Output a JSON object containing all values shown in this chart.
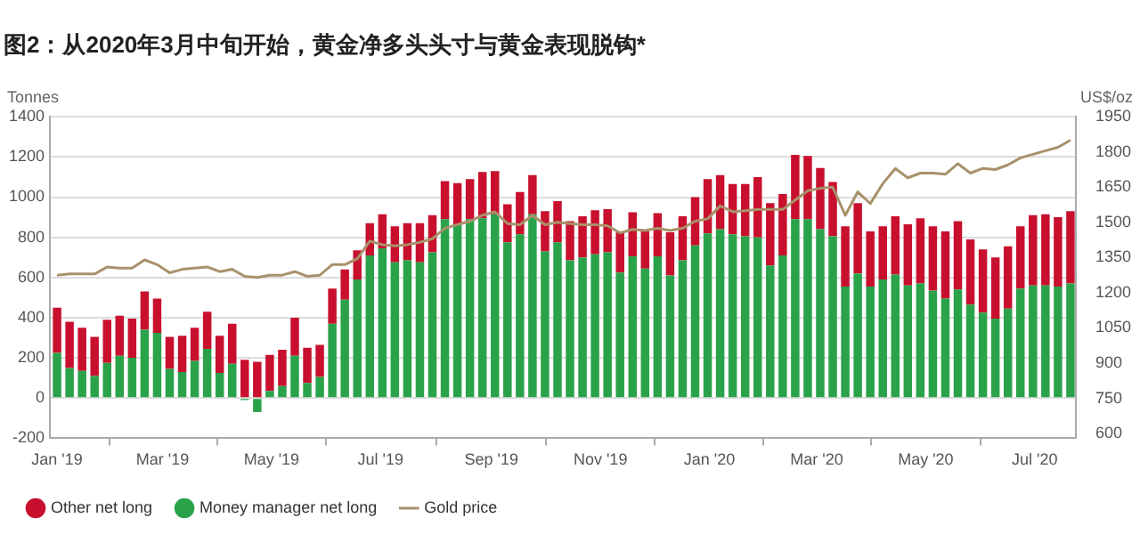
{
  "chart_data": {
    "type": "bar",
    "title": "图2：从2020年3月中旬开始，黄金净多头头寸与黄金表现脱钩*",
    "ylabel": "Tonnes",
    "y2label": "US$/oz",
    "x": [
      "2019-01-01",
      "2019-01-08",
      "2019-01-15",
      "2019-01-22",
      "2019-01-29",
      "2019-02-05",
      "2019-02-12",
      "2019-02-19",
      "2019-02-26",
      "2019-03-05",
      "2019-03-12",
      "2019-03-19",
      "2019-03-26",
      "2019-04-02",
      "2019-04-09",
      "2019-04-16",
      "2019-04-23",
      "2019-04-30",
      "2019-05-07",
      "2019-05-14",
      "2019-05-21",
      "2019-05-28",
      "2019-06-04",
      "2019-06-11",
      "2019-06-18",
      "2019-06-25",
      "2019-07-02",
      "2019-07-09",
      "2019-07-16",
      "2019-07-23",
      "2019-07-30",
      "2019-08-06",
      "2019-08-13",
      "2019-08-20",
      "2019-08-27",
      "2019-09-03",
      "2019-09-10",
      "2019-09-17",
      "2019-09-24",
      "2019-10-01",
      "2019-10-08",
      "2019-10-15",
      "2019-10-22",
      "2019-10-29",
      "2019-11-05",
      "2019-11-12",
      "2019-11-19",
      "2019-11-26",
      "2019-12-03",
      "2019-12-10",
      "2019-12-17",
      "2019-12-24",
      "2019-12-31",
      "2020-01-07",
      "2020-01-14",
      "2020-01-21",
      "2020-01-28",
      "2020-02-04",
      "2020-02-11",
      "2020-02-18",
      "2020-02-25",
      "2020-03-03",
      "2020-03-10",
      "2020-03-17",
      "2020-03-24",
      "2020-03-31",
      "2020-04-07",
      "2020-04-14",
      "2020-04-21",
      "2020-04-28",
      "2020-05-05",
      "2020-05-12",
      "2020-05-19",
      "2020-05-26",
      "2020-06-02",
      "2020-06-09",
      "2020-06-16",
      "2020-06-23",
      "2020-06-30",
      "2020-07-07",
      "2020-07-14",
      "2020-07-21"
    ],
    "series": [
      {
        "name": "Money manager net long",
        "color": "#2aa24a",
        "values": [
          225,
          150,
          135,
          110,
          175,
          210,
          200,
          340,
          325,
          145,
          130,
          185,
          245,
          125,
          170,
          -10,
          -70,
          35,
          60,
          210,
          75,
          105,
          370,
          490,
          590,
          710,
          745,
          675,
          685,
          675,
          725,
          890,
          865,
          890,
          895,
          915,
          775,
          815,
          915,
          730,
          775,
          685,
          700,
          715,
          725,
          625,
          705,
          645,
          705,
          610,
          685,
          760,
          820,
          840,
          815,
          805,
          800,
          660,
          710,
          890,
          890,
          840,
          805,
          555,
          620,
          555,
          590,
          615,
          560,
          570,
          535,
          495,
          540,
          465,
          425,
          395,
          445,
          545,
          560,
          560,
          555,
          570
        ]
      },
      {
        "name": "Other net long",
        "color": "#c8102e",
        "values": [
          225,
          230,
          215,
          195,
          215,
          200,
          195,
          190,
          170,
          160,
          180,
          165,
          185,
          185,
          200,
          190,
          180,
          180,
          180,
          190,
          175,
          160,
          175,
          150,
          145,
          160,
          170,
          180,
          185,
          195,
          185,
          190,
          205,
          200,
          230,
          215,
          190,
          210,
          195,
          200,
          205,
          195,
          205,
          220,
          215,
          200,
          220,
          185,
          215,
          215,
          220,
          240,
          270,
          270,
          250,
          260,
          300,
          310,
          305,
          320,
          315,
          305,
          270,
          300,
          350,
          275,
          265,
          290,
          305,
          325,
          320,
          335,
          340,
          325,
          315,
          305,
          310,
          310,
          350,
          355,
          345,
          360
        ]
      },
      {
        "name": "Gold price",
        "type": "line",
        "axis": "y2",
        "color": "#a8916b",
        "values": [
          1275,
          1280,
          1280,
          1280,
          1310,
          1305,
          1305,
          1340,
          1320,
          1285,
          1300,
          1305,
          1310,
          1290,
          1300,
          1270,
          1265,
          1275,
          1275,
          1290,
          1270,
          1275,
          1320,
          1320,
          1345,
          1420,
          1405,
          1400,
          1405,
          1415,
          1430,
          1475,
          1490,
          1505,
          1530,
          1545,
          1495,
          1490,
          1530,
          1490,
          1500,
          1495,
          1490,
          1490,
          1485,
          1455,
          1470,
          1465,
          1475,
          1465,
          1475,
          1505,
          1515,
          1570,
          1545,
          1550,
          1555,
          1555,
          1555,
          1595,
          1635,
          1645,
          1650,
          1530,
          1630,
          1580,
          1665,
          1730,
          1690,
          1710,
          1710,
          1705,
          1750,
          1710,
          1730,
          1725,
          1745,
          1775,
          1790,
          1805,
          1820,
          1850
        ]
      }
    ],
    "stacked": true,
    "xlim": [
      "2018-12-28",
      "2020-07-24"
    ],
    "xticks": [
      {
        "value": "2019-01-01",
        "label": "Jan '19"
      },
      {
        "value": "2019-03-01",
        "label": "Mar '19"
      },
      {
        "value": "2019-05-01",
        "label": "May '19"
      },
      {
        "value": "2019-07-01",
        "label": "Jul '19"
      },
      {
        "value": "2019-09-01",
        "label": "Sep '19"
      },
      {
        "value": "2019-11-01",
        "label": "Nov '19"
      },
      {
        "value": "2020-01-01",
        "label": "Jan '20"
      },
      {
        "value": "2020-03-01",
        "label": "Mar '20"
      },
      {
        "value": "2020-05-01",
        "label": "May '20"
      },
      {
        "value": "2020-07-01",
        "label": "Jul '20"
      }
    ],
    "ylim": [
      -200,
      1400
    ],
    "yticks": [
      -200,
      0,
      200,
      400,
      600,
      800,
      1000,
      1200,
      1400
    ],
    "y2lim": [
      580,
      1950
    ],
    "y2ticks": [
      600,
      750,
      900,
      1050,
      1200,
      1350,
      1500,
      1650,
      1800,
      1950
    ],
    "grid": "y",
    "legend": "bottom left"
  }
}
